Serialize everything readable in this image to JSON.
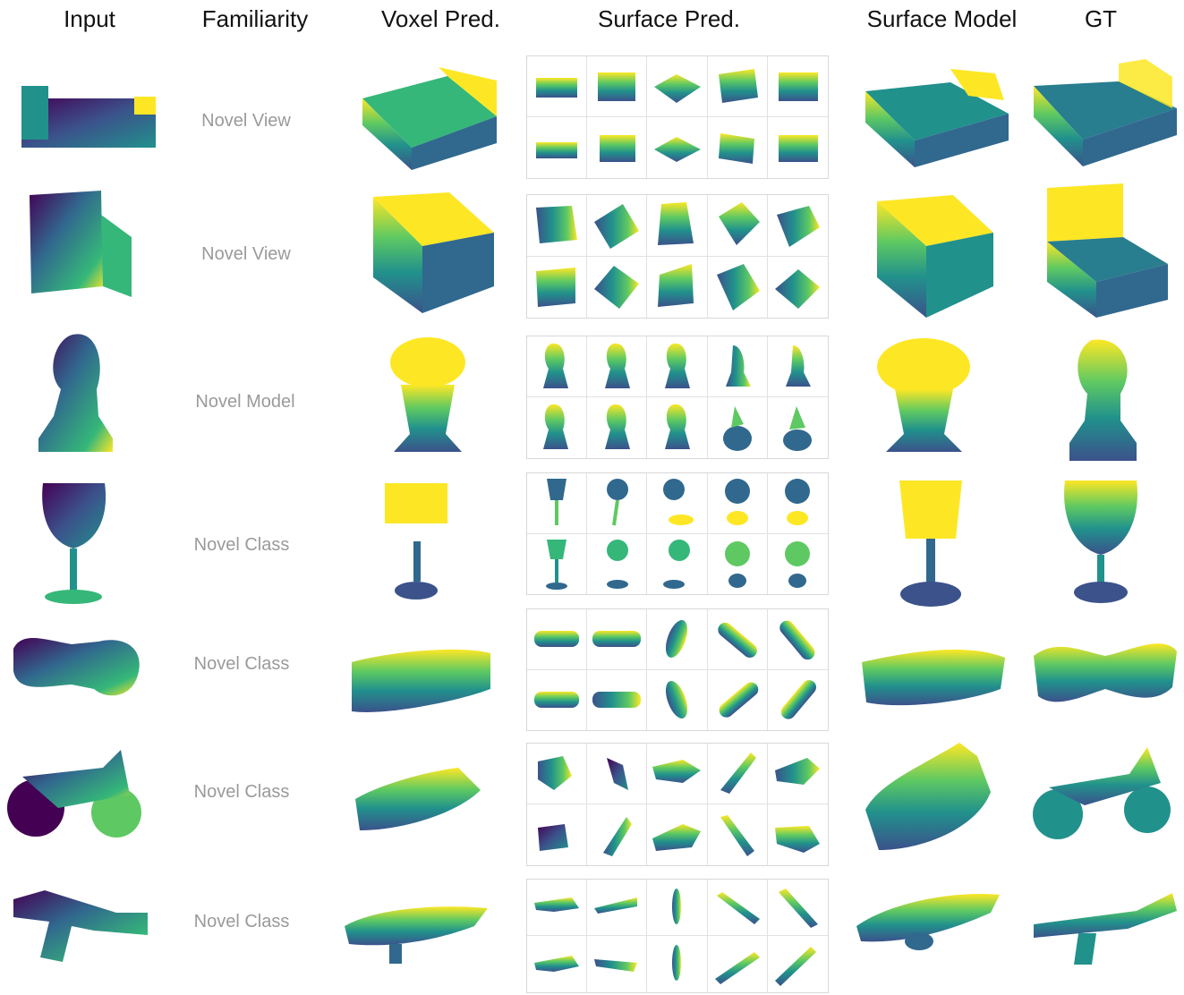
{
  "headers": {
    "input": "Input",
    "familiarity": "Familiarity",
    "voxel": "Voxel Pred.",
    "surface_pred": "Surface Pred.",
    "surface_model": "Surface Model",
    "gt": "GT"
  },
  "rows": [
    {
      "familiarity": "Novel View",
      "object": "bed"
    },
    {
      "familiarity": "Novel View",
      "object": "armchair"
    },
    {
      "familiarity": "Novel Model",
      "object": "chess-knight"
    },
    {
      "familiarity": "Novel Class",
      "object": "wine-glass"
    },
    {
      "familiarity": "Novel Class",
      "object": "bone"
    },
    {
      "familiarity": "Novel Class",
      "object": "motorcycle"
    },
    {
      "familiarity": "Novel Class",
      "object": "rifle"
    }
  ],
  "colors": {
    "viridis_dark": "#440154",
    "viridis_blue": "#31688e",
    "viridis_teal": "#35b779",
    "viridis_yellow": "#fde725",
    "label_gray": "#9a9a9a"
  }
}
